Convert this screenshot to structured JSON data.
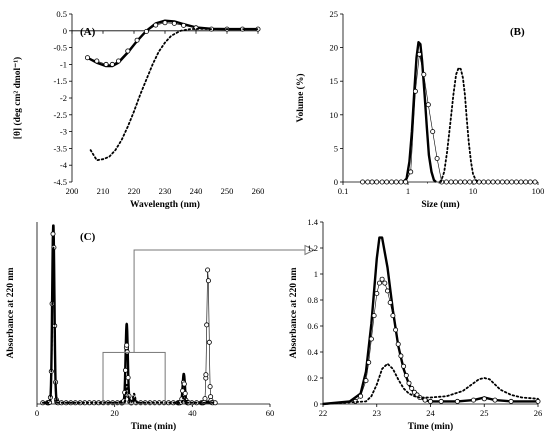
{
  "chart_data": [
    {
      "panel": "(A)",
      "type": "line",
      "xlabel": "Wavelength  (nm)",
      "ylabel": "[θ] (deg cm² dmol⁻¹)",
      "xlim": [
        200,
        260
      ],
      "ylim": [
        -4.5,
        0.5
      ],
      "xticks": [
        200,
        210,
        220,
        230,
        240,
        250,
        260
      ],
      "yticks": [
        -4.5,
        -4,
        -3.5,
        -3,
        -2.5,
        -2,
        -1.5,
        -1,
        -0.5,
        0,
        0.5
      ],
      "grid": false,
      "series": [
        {
          "style": "solid",
          "x": [
            205,
            208,
            211,
            213,
            215,
            218,
            221,
            224,
            227,
            230,
            233,
            236,
            240,
            245,
            250,
            255,
            260
          ],
          "y": [
            -0.8,
            -0.95,
            -1.05,
            -1.05,
            -0.95,
            -0.65,
            -0.3,
            0.0,
            0.22,
            0.3,
            0.28,
            0.2,
            0.1,
            0.06,
            0.05,
            0.05,
            0.05
          ]
        },
        {
          "style": "circles",
          "x": [
            205,
            208,
            211,
            213,
            215,
            218,
            221,
            224,
            227,
            230,
            233,
            236,
            240,
            245,
            250,
            255,
            260
          ],
          "y": [
            -0.8,
            -0.9,
            -1.0,
            -1.0,
            -0.9,
            -0.6,
            -0.28,
            -0.02,
            0.17,
            0.24,
            0.22,
            0.16,
            0.09,
            0.05,
            0.05,
            0.05,
            0.05
          ]
        },
        {
          "style": "dotted",
          "x": [
            206,
            208,
            210,
            212,
            214,
            216,
            218,
            220,
            222,
            224,
            226,
            228,
            230,
            232,
            235,
            238,
            241,
            245,
            250,
            255,
            260
          ],
          "y": [
            -3.55,
            -3.85,
            -3.82,
            -3.75,
            -3.55,
            -3.25,
            -2.85,
            -2.4,
            -1.9,
            -1.45,
            -1.0,
            -0.62,
            -0.35,
            -0.15,
            0.0,
            0.05,
            0.06,
            0.05,
            0.05,
            0.05,
            0.05
          ]
        }
      ]
    },
    {
      "panel": "(B)",
      "type": "line",
      "xlabel": "Size (nm)",
      "ylabel": "Volume  (%)",
      "xscale": "log",
      "xlim": [
        0.1,
        100
      ],
      "ylim": [
        0,
        25
      ],
      "xticks": [
        0.1,
        1,
        10,
        100
      ],
      "xtick_labels": [
        "0.1",
        "1",
        "10",
        "100"
      ],
      "yticks": [
        0,
        5,
        10,
        15,
        20,
        25
      ],
      "grid": false,
      "series": [
        {
          "style": "solid",
          "x": [
            0.85,
            0.95,
            1.05,
            1.15,
            1.25,
            1.35,
            1.45,
            1.55,
            1.65,
            1.8,
            1.95,
            2.1,
            2.3,
            2.5,
            2.7
          ],
          "y": [
            0,
            0.5,
            3,
            7.5,
            13.5,
            18.5,
            20.8,
            20.5,
            18,
            13,
            8,
            4,
            1.5,
            0.3,
            0
          ]
        },
        {
          "style": "circles",
          "x": [
            0.2,
            0.24,
            0.28,
            0.33,
            0.4,
            0.47,
            0.56,
            0.66,
            0.78,
            0.92,
            1.1,
            1.3,
            1.5,
            1.75,
            2.05,
            2.4,
            2.8,
            3.3,
            3.9,
            4.6,
            5.4,
            6.4,
            7.5,
            8.9,
            10.5,
            12.4,
            14.6,
            17.2,
            20.3,
            24,
            28.3,
            33.4,
            39.4,
            46.5,
            54.8,
            64.6,
            76.2,
            90
          ],
          "y": [
            0,
            0,
            0,
            0,
            0,
            0,
            0,
            0,
            0,
            0,
            1.5,
            13.5,
            19,
            16,
            11.5,
            7.5,
            3.5,
            0,
            0,
            0,
            0,
            0,
            0,
            0,
            0,
            0,
            0,
            0,
            0,
            0,
            0,
            0,
            0,
            0,
            0,
            0,
            0,
            0
          ]
        },
        {
          "style": "dotted",
          "x": [
            3.2,
            3.6,
            4.0,
            4.5,
            5.0,
            5.5,
            6.0,
            6.5,
            7.0,
            7.5,
            8.0,
            8.6,
            9.3,
            10.0,
            11.0,
            12.5
          ],
          "y": [
            0,
            1.5,
            4.5,
            9,
            13,
            16,
            17,
            16.8,
            15.5,
            13,
            9.5,
            6,
            3,
            1.2,
            0.3,
            0
          ]
        }
      ]
    },
    {
      "panel": "(C)",
      "type": "line",
      "xlabel": "Time  (min)",
      "ylabel": "Absorbance  at 220 nm",
      "xlim": [
        0,
        60
      ],
      "ylim": [
        0,
        3
      ],
      "xticks": [
        0,
        20,
        40,
        60
      ],
      "grid": false,
      "series": [
        {
          "style": "solid",
          "peaks": [
            {
              "t": 4.2,
              "h": 2.95
            },
            {
              "t": 23.1,
              "h": 1.3
            },
            {
              "t": 25.0,
              "h": 0.06
            },
            {
              "t": 37.8,
              "h": 0.48
            },
            {
              "t": 44.0,
              "h": 0.02
            }
          ]
        },
        {
          "style": "circles",
          "peaks": [
            {
              "t": 4.2,
              "h": 2.9
            },
            {
              "t": 23.1,
              "h": 0.95
            },
            {
              "t": 37.8,
              "h": 0.35
            },
            {
              "t": 44.0,
              "h": 2.28
            }
          ]
        },
        {
          "style": "dotted",
          "peaks": [
            {
              "t": 4.2,
              "h": 2.6
            },
            {
              "t": 23.2,
              "h": 0.3
            },
            {
              "t": 25.0,
              "h": 0.15
            },
            {
              "t": 37.8,
              "h": 0.1
            }
          ]
        }
      ],
      "zoom_box": {
        "x": [
          17,
          33
        ],
        "y": [
          0,
          0.85
        ]
      }
    },
    {
      "panel": "zoom",
      "type": "line",
      "xlabel": "Time  (min)",
      "ylabel": "Absorbance  at 220 nm",
      "xlim": [
        22,
        26
      ],
      "ylim": [
        0,
        1.4
      ],
      "xticks": [
        22,
        23,
        24,
        25,
        26
      ],
      "yticks": [
        0,
        0.2,
        0.4,
        0.6,
        0.8,
        1,
        1.2,
        1.4
      ],
      "grid": false,
      "series": [
        {
          "style": "solid",
          "x": [
            22.0,
            22.5,
            22.7,
            22.8,
            22.9,
            23.0,
            23.05,
            23.1,
            23.2,
            23.3,
            23.4,
            23.5,
            23.6,
            23.7,
            23.8,
            23.9,
            24.0,
            24.2,
            24.5,
            24.8,
            25.0,
            25.2,
            25.5,
            26.0
          ],
          "y": [
            0.0,
            0.02,
            0.08,
            0.25,
            0.62,
            1.12,
            1.28,
            1.28,
            1.05,
            0.72,
            0.45,
            0.27,
            0.15,
            0.08,
            0.05,
            0.03,
            0.02,
            0.02,
            0.02,
            0.03,
            0.05,
            0.03,
            0.02,
            0.02
          ]
        },
        {
          "style": "circles",
          "x": [
            22.6,
            22.7,
            22.8,
            22.85,
            22.9,
            22.95,
            23.0,
            23.05,
            23.1,
            23.15,
            23.2,
            23.25,
            23.3,
            23.35,
            23.4,
            23.45,
            23.5,
            23.55,
            23.6,
            23.65,
            23.7,
            23.75,
            23.8,
            23.9,
            24.0,
            24.2,
            24.5,
            24.8,
            25.0,
            25.2,
            25.5,
            26.0
          ],
          "y": [
            0.02,
            0.06,
            0.18,
            0.32,
            0.5,
            0.68,
            0.85,
            0.93,
            0.96,
            0.93,
            0.87,
            0.78,
            0.68,
            0.57,
            0.46,
            0.37,
            0.29,
            0.22,
            0.16,
            0.12,
            0.09,
            0.07,
            0.05,
            0.03,
            0.02,
            0.02,
            0.02,
            0.03,
            0.04,
            0.03,
            0.02,
            0.02
          ]
        },
        {
          "style": "dotted",
          "x": [
            22.0,
            22.8,
            22.9,
            23.0,
            23.1,
            23.2,
            23.3,
            23.4,
            23.5,
            23.6,
            23.7,
            23.8,
            24.0,
            24.3,
            24.6,
            24.8,
            24.9,
            25.0,
            25.1,
            25.2,
            25.3,
            25.5,
            25.7,
            26.0
          ],
          "y": [
            0.0,
            0.02,
            0.06,
            0.15,
            0.27,
            0.31,
            0.27,
            0.19,
            0.12,
            0.08,
            0.06,
            0.05,
            0.05,
            0.06,
            0.1,
            0.16,
            0.19,
            0.2,
            0.19,
            0.15,
            0.11,
            0.07,
            0.05,
            0.04
          ]
        }
      ]
    }
  ]
}
